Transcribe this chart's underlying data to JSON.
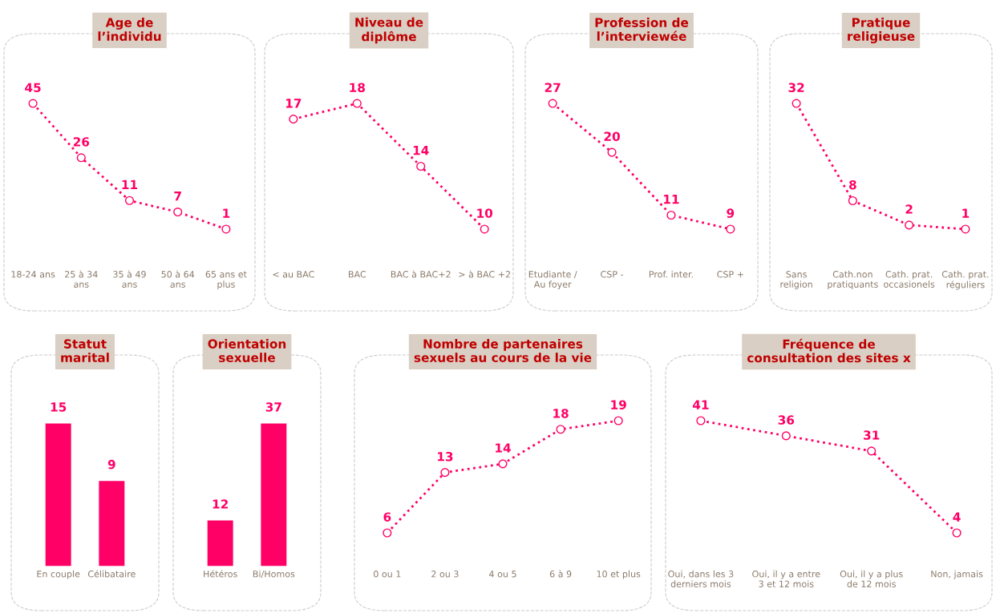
{
  "chart_data": [
    {
      "type": "line",
      "title": "Age de\nl’individu",
      "categories": [
        "18-24 ans",
        "25 à 34\nans",
        "35 à 49\nans",
        "50 à 64\nans",
        "65 ans et\nplus"
      ],
      "values": [
        45,
        26,
        11,
        7,
        1
      ],
      "color": "#ff0066",
      "data_labels": true,
      "marker": "circle",
      "line_style": "dotted",
      "tick_labels": "x"
    },
    {
      "type": "line",
      "title": "Niveau de\ndiplôme",
      "categories": [
        "< au BAC",
        "BAC",
        "BAC à BAC+2",
        "> à BAC +2"
      ],
      "values": [
        17,
        18,
        14,
        10
      ],
      "color": "#ff0066",
      "data_labels": true,
      "marker": "circle",
      "line_style": "dotted",
      "tick_labels": "x"
    },
    {
      "type": "line",
      "title": "Profession de\nl’interviewée",
      "categories": [
        "Etudiante /\nAu foyer",
        "CSP -",
        "Prof. inter.",
        "CSP +"
      ],
      "values": [
        27,
        20,
        11,
        9
      ],
      "color": "#ff0066",
      "data_labels": true,
      "marker": "circle",
      "line_style": "dotted",
      "tick_labels": "x"
    },
    {
      "type": "line",
      "title": "Pratique\nreligieuse",
      "categories": [
        "Sans\nreligion",
        "Cath.non\npratiquants",
        "Cath. prat.\noccasionels",
        "Cath. prat.\nréguliers"
      ],
      "values": [
        32,
        8,
        2,
        1
      ],
      "color": "#ff0066",
      "data_labels": true,
      "marker": "circle",
      "line_style": "dotted",
      "tick_labels": "x"
    },
    {
      "type": "bar",
      "title": "Statut\nmarital",
      "categories": [
        "En couple",
        "Célibataire"
      ],
      "values": [
        15,
        9
      ],
      "color": "#ff0066",
      "data_labels": true,
      "tick_labels": "x"
    },
    {
      "type": "bar",
      "title": "Orientation\nsexuelle",
      "categories": [
        "Hétéros",
        "Bi/Homos"
      ],
      "values": [
        12,
        37
      ],
      "color": "#ff0066",
      "data_labels": true,
      "tick_labels": "x"
    },
    {
      "type": "line",
      "title": "Nombre de partenaires\nsexuels au cours de la vie",
      "categories": [
        "0 ou 1",
        "2 ou 3",
        "4 ou 5",
        "6 à 9",
        "10 et plus"
      ],
      "values": [
        6,
        13,
        14,
        18,
        19
      ],
      "color": "#ff0066",
      "data_labels": true,
      "marker": "circle",
      "line_style": "dotted",
      "tick_labels": "x"
    },
    {
      "type": "line",
      "title": "Fréquence de\nconsultation des sites x",
      "categories": [
        "Oui, dans les 3\nderniers mois",
        "Oui, il y a entre\n3 et 12 mois",
        "Oui, il y a plus\nde 12 mois",
        "Non, jamais"
      ],
      "values": [
        41,
        36,
        31,
        4
      ],
      "color": "#ff0066",
      "data_labels": true,
      "marker": "circle",
      "line_style": "dotted",
      "tick_labels": "x"
    }
  ]
}
